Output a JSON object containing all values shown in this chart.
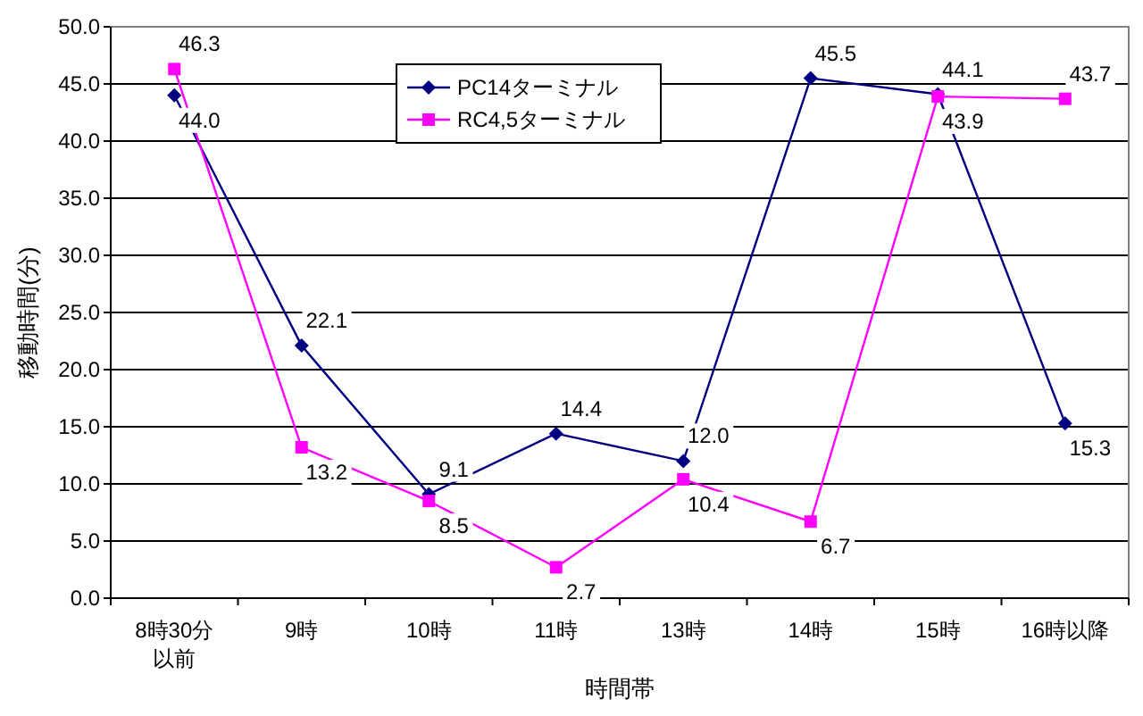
{
  "chart_data": {
    "type": "line",
    "xlabel": "時間帯",
    "ylabel": "移動時間(分)",
    "categories": [
      "8時30分以前",
      "9時",
      "10時",
      "11時",
      "13時",
      "14時",
      "15時",
      "16時以降"
    ],
    "series": [
      {
        "name": "PC14ターミナル",
        "color": "#000080",
        "marker": "diamond",
        "values": [
          44.0,
          22.1,
          9.1,
          14.4,
          12.0,
          45.5,
          44.1,
          15.3
        ],
        "value_labels": [
          "44.0",
          "22.1",
          "9.1",
          "14.4",
          "12.0",
          "45.5",
          "44.1",
          "15.3"
        ]
      },
      {
        "name": "RC4,5ターミナル",
        "color": "#ff00ff",
        "marker": "square",
        "values": [
          46.3,
          13.2,
          8.5,
          2.7,
          10.4,
          6.7,
          43.9,
          43.7
        ],
        "value_labels": [
          "46.3",
          "13.2",
          "8.5",
          "2.7",
          "10.4",
          "6.7",
          "43.9",
          "43.7"
        ]
      }
    ],
    "ylim": [
      0,
      50
    ],
    "yticks": [
      {
        "value": 0,
        "label": "0.0"
      },
      {
        "value": 5,
        "label": "5.0"
      },
      {
        "value": 10,
        "label": "10.0"
      },
      {
        "value": 15,
        "label": "15.0"
      },
      {
        "value": 20,
        "label": "20.0"
      },
      {
        "value": 25,
        "label": "25.0"
      },
      {
        "value": 30,
        "label": "30.0"
      },
      {
        "value": 35,
        "label": "35.0"
      },
      {
        "value": 40,
        "label": "40.0"
      },
      {
        "value": 45,
        "label": "45.0"
      },
      {
        "value": 50,
        "label": "50.0"
      }
    ],
    "grid": "y",
    "legend": "top"
  }
}
